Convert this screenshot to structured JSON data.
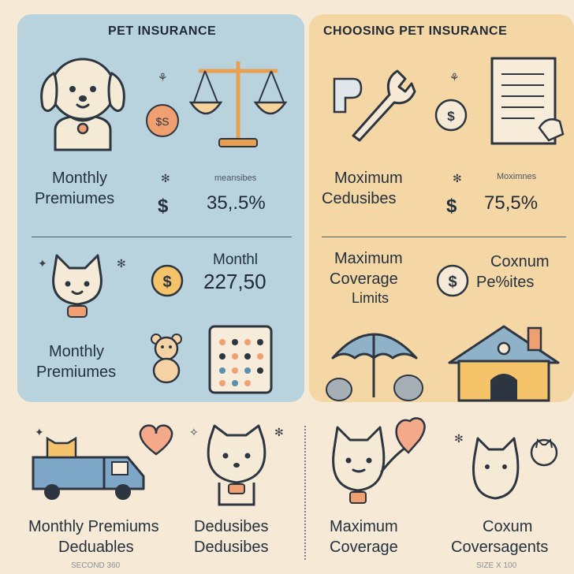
{
  "left_panel": {
    "title": "PET INSURANCE",
    "row1_label_line1": "Monthly",
    "row1_label_line2": "Premiumes",
    "row1_small": "meansibes",
    "row1_value": "35,.5%",
    "row2_small": "Monthl",
    "row2_value": "227,50",
    "row3_label_line1": "Monthly",
    "row3_label_line2": "Premiumes",
    "coin_label": "$S",
    "dollar": "$"
  },
  "right_panel": {
    "title": "CHOOSING PET INSURANCE",
    "row1_label_line1": "Moximum",
    "row1_label_line2": "Cedusibes",
    "row1_small": "Moximnes",
    "row1_value": "75,5%",
    "row2_label_line1": "Maximum",
    "row2_label_line2": "Coverage",
    "row2_label_line3": "Limits",
    "row2_value_line1": "Coxnum",
    "row2_value_line2": "Pe%ites",
    "dollar": "$"
  },
  "bottom": {
    "col1_line1": "Monthly Premiums",
    "col1_line2": "Deduables",
    "col2_line1": "Dedusibes",
    "col2_line2": "Dedusibes",
    "col3_line1": "Maximum",
    "col3_line2": "Coverage",
    "col4_line1": "Coxum",
    "col4_line2": "Coversagents",
    "footer_left": "SECOND 360",
    "footer_right": "SIZE X 100"
  },
  "colors": {
    "left_panel_bg": "#b8d3de",
    "right_panel_bg": "#f4d7a4",
    "page_bg": "#f6ead7",
    "accent_orange": "#f0a070",
    "accent_yellow": "#f5c46a"
  }
}
